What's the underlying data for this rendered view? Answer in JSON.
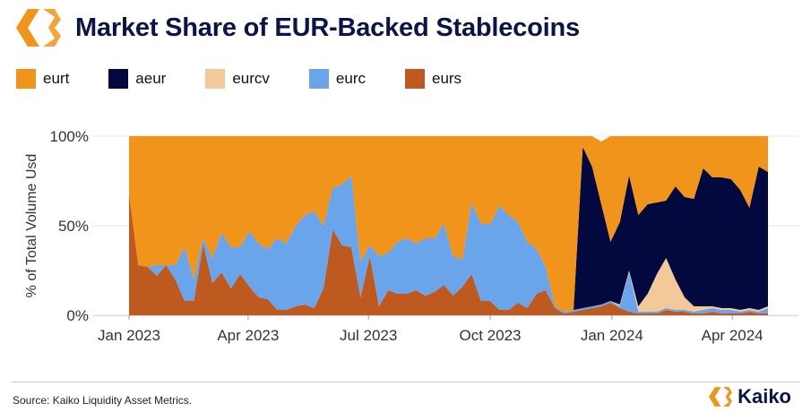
{
  "header": {
    "title": "Market Share of EUR-Backed Stablecoins"
  },
  "footer": {
    "source": "Source: Kaiko Liquidity Asset Metrics.",
    "brand": "Kaiko"
  },
  "colors": {
    "eurt": "#f0941c",
    "aeur": "#03093e",
    "eurcv": "#f3c99a",
    "eurc": "#6aa4eb",
    "eurs": "#be5a20",
    "brand_orange": "#f0941c",
    "brand_navy": "#0b1447"
  },
  "chart_data": {
    "type": "area",
    "stacked": true,
    "title": "Market Share of EUR-Backed Stablecoins",
    "xlabel": "",
    "ylabel": "% of Total Volume Usd",
    "ylim": [
      0,
      100
    ],
    "yticks": [
      "0%",
      "50%",
      "100%"
    ],
    "xticks": [
      "Jan 2023",
      "Apr 2023",
      "Jul 2023",
      "Oct 2023",
      "Jan 2024",
      "Apr 2024"
    ],
    "x_start": "2023-01-01",
    "x_end": "2024-04-28",
    "x": [
      "2023-01-01",
      "2023-01-08",
      "2023-01-15",
      "2023-01-22",
      "2023-01-29",
      "2023-02-05",
      "2023-02-12",
      "2023-02-19",
      "2023-02-26",
      "2023-03-05",
      "2023-03-12",
      "2023-03-19",
      "2023-03-26",
      "2023-04-02",
      "2023-04-09",
      "2023-04-16",
      "2023-04-23",
      "2023-04-30",
      "2023-05-07",
      "2023-05-14",
      "2023-05-21",
      "2023-05-28",
      "2023-06-04",
      "2023-06-11",
      "2023-06-18",
      "2023-06-25",
      "2023-07-02",
      "2023-07-09",
      "2023-07-16",
      "2023-07-23",
      "2023-07-30",
      "2023-08-06",
      "2023-08-13",
      "2023-08-20",
      "2023-08-27",
      "2023-09-03",
      "2023-09-10",
      "2023-09-17",
      "2023-09-24",
      "2023-10-01",
      "2023-10-08",
      "2023-10-15",
      "2023-10-22",
      "2023-10-29",
      "2023-11-05",
      "2023-11-12",
      "2023-11-19",
      "2023-11-26",
      "2023-12-03",
      "2023-12-10",
      "2023-12-17",
      "2023-12-24",
      "2023-12-31",
      "2024-01-07",
      "2024-01-14",
      "2024-01-21",
      "2024-01-28",
      "2024-02-04",
      "2024-02-11",
      "2024-02-18",
      "2024-02-25",
      "2024-03-03",
      "2024-03-10",
      "2024-03-17",
      "2024-03-24",
      "2024-03-31",
      "2024-04-07",
      "2024-04-14",
      "2024-04-21",
      "2024-04-28"
    ],
    "series": [
      {
        "name": "eurs",
        "values": [
          68,
          28,
          27,
          22,
          28,
          20,
          8,
          8,
          40,
          18,
          24,
          15,
          23,
          16,
          10,
          9,
          3,
          3,
          5,
          6,
          4,
          15,
          48,
          39,
          38,
          10,
          33,
          5,
          14,
          12,
          12,
          14,
          11,
          13,
          17,
          11,
          16,
          23,
          8,
          8,
          3,
          3,
          7,
          4,
          12,
          14,
          4,
          1,
          2,
          3,
          4,
          5,
          7,
          4,
          2,
          1,
          1,
          1,
          3,
          2,
          2,
          1,
          1,
          2,
          1,
          1,
          1,
          2,
          1,
          1
        ]
      },
      {
        "name": "eurc",
        "values": [
          0,
          0,
          0,
          6,
          0,
          8,
          30,
          12,
          3,
          14,
          22,
          23,
          15,
          31,
          30,
          28,
          40,
          37,
          45,
          50,
          54,
          35,
          23,
          34,
          40,
          20,
          6,
          28,
          21,
          29,
          31,
          26,
          32,
          30,
          34,
          22,
          15,
          40,
          43,
          43,
          58,
          53,
          45,
          37,
          25,
          13,
          1,
          1,
          1,
          1,
          1,
          1,
          1,
          1,
          22,
          1,
          1,
          1,
          1,
          1,
          1,
          1,
          2,
          2,
          2,
          2,
          1,
          1,
          1,
          3
        ]
      },
      {
        "name": "eurcv",
        "values": [
          0,
          0,
          0,
          0,
          0,
          0,
          0,
          0,
          0,
          0,
          0,
          0,
          0,
          0,
          0,
          0,
          0,
          0,
          0,
          0,
          0,
          0,
          0,
          0,
          0,
          0,
          0,
          0,
          0,
          0,
          0,
          0,
          0,
          0,
          0,
          0,
          0,
          0,
          0,
          0,
          0,
          0,
          0,
          0,
          0,
          0,
          0,
          0,
          0,
          0,
          0,
          0,
          0,
          1,
          1,
          3,
          10,
          21,
          28,
          17,
          7,
          3,
          2,
          1,
          1,
          1,
          1,
          1,
          1,
          1
        ]
      },
      {
        "name": "aeur",
        "values": [
          0,
          0,
          0,
          0,
          0,
          0,
          0,
          0,
          0,
          0,
          0,
          0,
          0,
          0,
          0,
          0,
          0,
          0,
          0,
          0,
          0,
          0,
          0,
          0,
          0,
          0,
          0,
          0,
          0,
          0,
          0,
          0,
          0,
          0,
          0,
          0,
          0,
          0,
          0,
          0,
          0,
          0,
          0,
          0,
          0,
          0,
          0,
          0,
          0,
          90,
          78,
          56,
          33,
          46,
          53,
          51,
          50,
          40,
          32,
          52,
          56,
          60,
          77,
          72,
          73,
          72,
          67,
          56,
          80,
          75
        ]
      },
      {
        "name": "eurt",
        "values": [
          32,
          72,
          73,
          72,
          72,
          72,
          62,
          80,
          57,
          68,
          54,
          62,
          62,
          53,
          60,
          63,
          57,
          60,
          50,
          44,
          42,
          50,
          29,
          27,
          22,
          70,
          61,
          67,
          65,
          59,
          57,
          60,
          57,
          57,
          49,
          67,
          69,
          37,
          49,
          49,
          39,
          44,
          48,
          59,
          63,
          73,
          95,
          98,
          97,
          6,
          17,
          35,
          59,
          48,
          22,
          44,
          38,
          37,
          36,
          28,
          34,
          35,
          18,
          23,
          23,
          24,
          30,
          40,
          17,
          20
        ]
      }
    ],
    "legend": [
      "eurt",
      "aeur",
      "eurcv",
      "eurc",
      "eurs"
    ],
    "legend_position": "top-left",
    "grid": true
  }
}
